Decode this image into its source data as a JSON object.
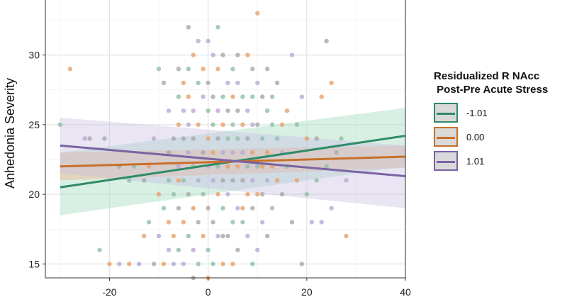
{
  "chart_data": {
    "type": "scatter",
    "ylabel": "Anhedonia Severity",
    "xlabel": "",
    "xlim": [
      -33,
      40
    ],
    "ylim": [
      14,
      34
    ],
    "x_ticks": [
      -20,
      0,
      20,
      40
    ],
    "y_ticks": [
      15,
      20,
      25,
      30
    ],
    "grid": true,
    "legend": {
      "title": "Residualized R NAcc\n Post-Pre Acute Stress",
      "position": "right"
    },
    "series": [
      {
        "name": "-1.01",
        "color": "#2e8b68",
        "band_color": "#a8dcc4",
        "line": {
          "x": [
            -30,
            40
          ],
          "y": [
            20.5,
            24.2
          ]
        },
        "band_upper": [
          23.0,
          26.2
        ],
        "band_lower": [
          18.5,
          22.0
        ],
        "band_opacity": 0.45
      },
      {
        "name": "0.00",
        "color": "#c8702a",
        "band_color": "#e8c3a2",
        "line": {
          "x": [
            -30,
            40
          ],
          "y": [
            22.0,
            22.7
          ]
        },
        "band_upper": [
          23.0,
          23.5
        ],
        "band_lower": [
          21.0,
          21.9
        ],
        "band_opacity": 0.6
      },
      {
        "name": "1.01",
        "color": "#7a63a3",
        "band_color": "#c7bde2",
        "line": {
          "x": [
            -30,
            40
          ],
          "y": [
            23.5,
            21.3
          ]
        },
        "band_upper": [
          25.5,
          23.5
        ],
        "band_lower": [
          21.5,
          19.0
        ],
        "band_opacity": 0.4
      }
    ],
    "point_colors": [
      "#8fbfa6",
      "#e8a06a",
      "#b8a9d4",
      "#a8a8a8"
    ],
    "points": [
      [
        -30,
        25
      ],
      [
        -28,
        29
      ],
      [
        -25,
        24
      ],
      [
        -24,
        24
      ],
      [
        -22,
        16
      ],
      [
        -20,
        15
      ],
      [
        -18,
        15
      ],
      [
        -18,
        22
      ],
      [
        -16,
        21
      ],
      [
        -16,
        15
      ],
      [
        -14,
        15
      ],
      [
        -13,
        21
      ],
      [
        -12,
        18
      ],
      [
        -12,
        22
      ],
      [
        -11,
        24
      ],
      [
        -11,
        15
      ],
      [
        -10,
        29
      ],
      [
        -10,
        20
      ],
      [
        -10,
        17
      ],
      [
        -9,
        28
      ],
      [
        -9,
        19
      ],
      [
        -9,
        15
      ],
      [
        -8,
        26
      ],
      [
        -8,
        23
      ],
      [
        -8,
        21
      ],
      [
        -8,
        18
      ],
      [
        -8,
        16
      ],
      [
        -7,
        24
      ],
      [
        -7,
        20
      ],
      [
        -7,
        17
      ],
      [
        -7,
        15
      ],
      [
        -6,
        29
      ],
      [
        -6,
        27
      ],
      [
        -6,
        25
      ],
      [
        -6,
        22
      ],
      [
        -6,
        19
      ],
      [
        -6,
        16
      ],
      [
        -5,
        28
      ],
      [
        -5,
        26
      ],
      [
        -5,
        24
      ],
      [
        -5,
        21
      ],
      [
        -5,
        18
      ],
      [
        -5,
        15
      ],
      [
        -4,
        32
      ],
      [
        -4,
        29
      ],
      [
        -4,
        27
      ],
      [
        -4,
        23
      ],
      [
        -4,
        20
      ],
      [
        -4,
        17
      ],
      [
        -3,
        30
      ],
      [
        -3,
        26
      ],
      [
        -3,
        24
      ],
      [
        -3,
        22
      ],
      [
        -3,
        19
      ],
      [
        -3,
        16
      ],
      [
        -3,
        14
      ],
      [
        -2,
        28
      ],
      [
        -2,
        25
      ],
      [
        -2,
        21
      ],
      [
        -2,
        18
      ],
      [
        -2,
        15
      ],
      [
        -1,
        29
      ],
      [
        -1,
        27
      ],
      [
        -1,
        23
      ],
      [
        -1,
        20
      ],
      [
        -1,
        17
      ],
      [
        0,
        31
      ],
      [
        0,
        28
      ],
      [
        0,
        26
      ],
      [
        0,
        24
      ],
      [
        0,
        22
      ],
      [
        0,
        19
      ],
      [
        0,
        16
      ],
      [
        0,
        14
      ],
      [
        1,
        30
      ],
      [
        1,
        27
      ],
      [
        1,
        25
      ],
      [
        1,
        23
      ],
      [
        1,
        21
      ],
      [
        1,
        18
      ],
      [
        1,
        15
      ],
      [
        2,
        29
      ],
      [
        2,
        26
      ],
      [
        2,
        24
      ],
      [
        2,
        22
      ],
      [
        2,
        20
      ],
      [
        2,
        17
      ],
      [
        3,
        30
      ],
      [
        3,
        27
      ],
      [
        3,
        25
      ],
      [
        3,
        23
      ],
      [
        3,
        21
      ],
      [
        3,
        19
      ],
      [
        3,
        15
      ],
      [
        4,
        28
      ],
      [
        4,
        26
      ],
      [
        4,
        24
      ],
      [
        4,
        22
      ],
      [
        4,
        20
      ],
      [
        4,
        17
      ],
      [
        5,
        29
      ],
      [
        5,
        27
      ],
      [
        5,
        23
      ],
      [
        5,
        21
      ],
      [
        5,
        18
      ],
      [
        5,
        15
      ],
      [
        6,
        28
      ],
      [
        6,
        26
      ],
      [
        6,
        24
      ],
      [
        6,
        22
      ],
      [
        6,
        19
      ],
      [
        6,
        16
      ],
      [
        7,
        27
      ],
      [
        7,
        25
      ],
      [
        7,
        23
      ],
      [
        7,
        21
      ],
      [
        7,
        18
      ],
      [
        8,
        30
      ],
      [
        8,
        26
      ],
      [
        8,
        24
      ],
      [
        8,
        22
      ],
      [
        8,
        20
      ],
      [
        8,
        17
      ],
      [
        9,
        29
      ],
      [
        9,
        27
      ],
      [
        9,
        23
      ],
      [
        9,
        21
      ],
      [
        9,
        19
      ],
      [
        9,
        15
      ],
      [
        10,
        33
      ],
      [
        10,
        28
      ],
      [
        10,
        25
      ],
      [
        10,
        22
      ],
      [
        10,
        20
      ],
      [
        10,
        16
      ],
      [
        11,
        27
      ],
      [
        11,
        24
      ],
      [
        11,
        22
      ],
      [
        11,
        18
      ],
      [
        12,
        29
      ],
      [
        12,
        26
      ],
      [
        12,
        23
      ],
      [
        12,
        21
      ],
      [
        12,
        17
      ],
      [
        13,
        25
      ],
      [
        13,
        22
      ],
      [
        13,
        19
      ],
      [
        14,
        28
      ],
      [
        14,
        24
      ],
      [
        14,
        21
      ],
      [
        15,
        23
      ],
      [
        15,
        20
      ],
      [
        16,
        22
      ],
      [
        16,
        26
      ],
      [
        17,
        30
      ],
      [
        17,
        18
      ],
      [
        18,
        25
      ],
      [
        18,
        21
      ],
      [
        19,
        27
      ],
      [
        19,
        15
      ],
      [
        20,
        20
      ],
      [
        20,
        24
      ],
      [
        21,
        18
      ],
      [
        22,
        24
      ],
      [
        22,
        21
      ],
      [
        23,
        27
      ],
      [
        23,
        18
      ],
      [
        24,
        31
      ],
      [
        24,
        22
      ],
      [
        25,
        28
      ],
      [
        25,
        19
      ],
      [
        26,
        23
      ],
      [
        27,
        24
      ],
      [
        28,
        17
      ],
      [
        28,
        21
      ],
      [
        -21,
        24
      ],
      [
        -15,
        22
      ],
      [
        -13,
        17
      ],
      [
        -2,
        31
      ],
      [
        6,
        30
      ],
      [
        2,
        32
      ],
      [
        -6,
        21
      ],
      [
        -4,
        25
      ],
      [
        3,
        17
      ],
      [
        5,
        25
      ],
      [
        7,
        19
      ],
      [
        9,
        25
      ],
      [
        11,
        20
      ],
      [
        13,
        27
      ],
      [
        15,
        25
      ]
    ]
  }
}
